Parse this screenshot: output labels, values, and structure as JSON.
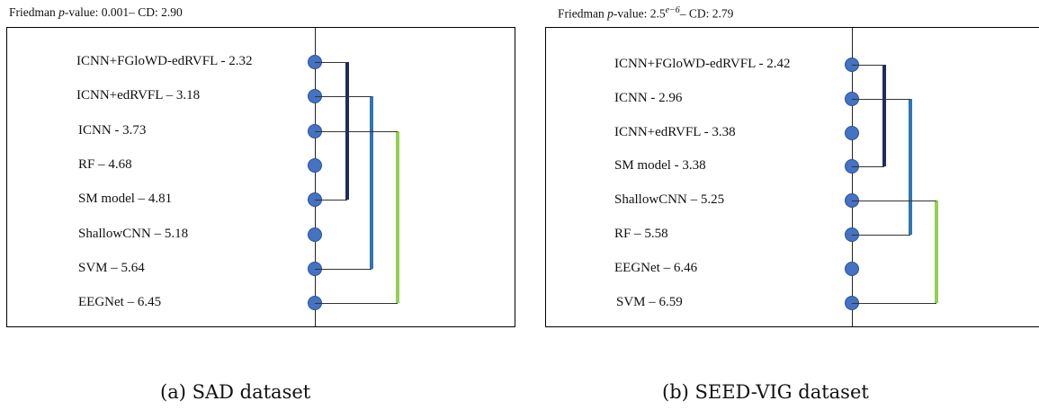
{
  "panel_a": {
    "title_prefix": "Friedman ",
    "title_p": "p",
    "title_rest": "-value: 0.001– CD: 2.90",
    "rows": [
      "ICNN+FGloWD-edRVFL - 2.32",
      "ICNN+edRVFL – 3.18",
      "ICNN - 3.73",
      "RF – 4.68",
      "SM model – 4.81",
      "ShallowCNN – 5.18",
      "SVM – 5.64",
      "EEGNet – 6.45"
    ],
    "groups": [
      {
        "from": 0,
        "to": 4,
        "color": "#1f2d5c"
      },
      {
        "from": 1,
        "to": 6,
        "color": "#2e75b6"
      },
      {
        "from": 2,
        "to": 7,
        "color": "#92d050"
      }
    ],
    "caption": "(a) SAD dataset"
  },
  "panel_b": {
    "title_prefix": "Friedman ",
    "title_p": "p",
    "title_value": "-value: 2.5",
    "title_exp": "e−6",
    "title_rest": "– CD: 2.79",
    "rows": [
      "ICNN+FGloWD-edRVFL - 2.42",
      "ICNN - 2.96",
      "ICNN+edRVFL - 3.38",
      "SM model - 3.38",
      "ShallowCNN – 5.25",
      "RF – 5.58",
      "EEGNet – 6.46",
      "SVM – 6.59"
    ],
    "groups": [
      {
        "from": 0,
        "to": 3,
        "color": "#1f2d5c"
      },
      {
        "from": 1,
        "to": 5,
        "color": "#2e75b6"
      },
      {
        "from": 4,
        "to": 7,
        "color": "#92d050"
      }
    ],
    "caption": "(b) SEED-VIG dataset"
  }
}
